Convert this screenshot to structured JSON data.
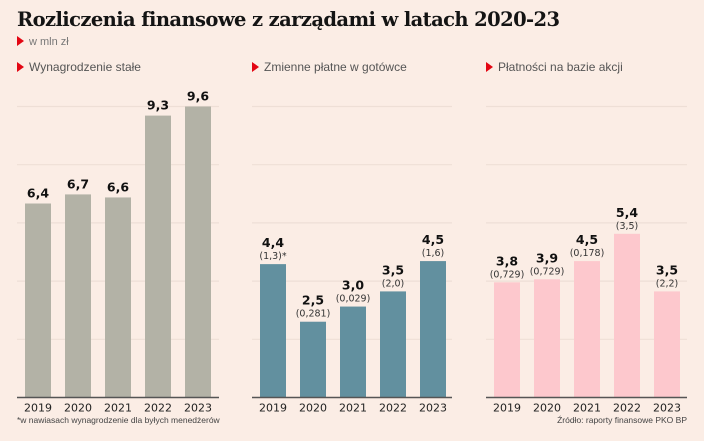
{
  "header": {
    "title": "Rozliczenia finansowe z zarządami w latach 2020-23",
    "unit": "w mln zł"
  },
  "colors": {
    "background": "#fbede5",
    "accent": "#e30613",
    "grid": "#eedfd6",
    "axis": "#555555"
  },
  "footer": {
    "footnote": "*w nawiasach wynagrodzenie dla byłych menedżerów",
    "source": "Źródło: raporty finansowe PKO BP"
  },
  "chart_data": [
    {
      "type": "bar",
      "title": "Wynagrodzenie stałe",
      "categories": [
        "2019",
        "2020",
        "2021",
        "2022",
        "2023"
      ],
      "values": [
        6.4,
        6.7,
        6.6,
        9.3,
        9.6
      ],
      "value_labels": [
        "6,4",
        "6,7",
        "6,6",
        "9,3",
        "9,6"
      ],
      "sub_labels": [
        "",
        "",
        "",
        "",
        ""
      ],
      "color": "#b3b2a6",
      "ylim": [
        0,
        9.6
      ],
      "grid": true
    },
    {
      "type": "bar",
      "title": "Zmienne płatne w gotówce",
      "categories": [
        "2019",
        "2020",
        "2021",
        "2022",
        "2023"
      ],
      "values": [
        4.4,
        2.5,
        3.0,
        3.5,
        4.5
      ],
      "value_labels": [
        "4,4",
        "2,5",
        "3,0",
        "3,5",
        "4,5"
      ],
      "sub_labels": [
        "(1,3)*",
        "(0,281)",
        "(0,029)",
        "(2,0)",
        "(1,6)"
      ],
      "color": "#62909f",
      "ylim": [
        0,
        9.6
      ],
      "grid": true
    },
    {
      "type": "bar",
      "title": "Płatności na bazie akcji",
      "categories": [
        "2019",
        "2020",
        "2021",
        "2022",
        "2023"
      ],
      "values": [
        3.8,
        3.9,
        4.5,
        5.4,
        3.5
      ],
      "value_labels": [
        "3,8",
        "3,9",
        "4,5",
        "5,4",
        "3,5"
      ],
      "sub_labels": [
        "(0,729)",
        "(0,729)",
        "(0,178)",
        "(3,5)",
        "(2,2)"
      ],
      "color": "#fdc8cd",
      "ylim": [
        0,
        9.6
      ],
      "grid": true
    }
  ]
}
